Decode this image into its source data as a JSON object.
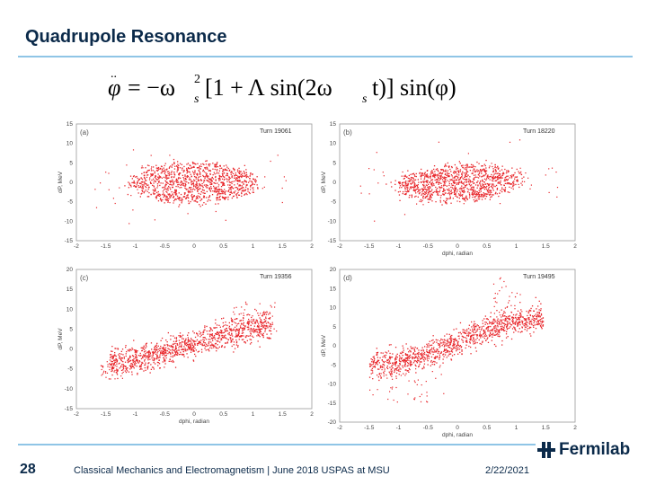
{
  "slide": {
    "title": "Quadrupole Resonance",
    "page_number": "28",
    "footer": "Classical Mechanics and Electromagnetism | June 2018 USPAS at MSU",
    "date": "2/22/2021",
    "logo_text": "Fermilab"
  },
  "equation": {
    "lhs": "φ",
    "rhs_1": "= −ω",
    "sub_s": "s",
    "sup_2": "2",
    "rhs_2": "[1 + Λ sin(2ω",
    "sub_s2": "s",
    "rhs_3": "t)] sin(φ)"
  },
  "colors": {
    "title": "#0b2a4a",
    "rule": "#8fc5e6",
    "points": "#e8262b",
    "logo": "#0b2a4a"
  },
  "chart_data": [
    {
      "type": "scatter",
      "panel": "(a)",
      "annotation": "Turn 19061",
      "xlabel": "",
      "ylabel": "dP, MeV",
      "xlim": [
        -2,
        2
      ],
      "ylim": [
        -15,
        15
      ],
      "xticks": [
        "-2",
        "-1.5",
        "-1",
        "-0.5",
        "0",
        "0.5",
        "1",
        "1.5",
        "2"
      ],
      "yticks": [
        "15",
        "10",
        "5",
        "0",
        "-5",
        "-10",
        "-15"
      ],
      "distribution": "filled ellipse centred at (0,0), phase half-width ~1.0 rad, dP half-height ~5 MeV, sparse halo to ±1.6 rad"
    },
    {
      "type": "scatter",
      "panel": "(b)",
      "annotation": "Turn 18220",
      "xlabel": "dphi, radian",
      "ylabel": "dP, MeV",
      "xlim": [
        -2,
        2
      ],
      "ylim": [
        -15,
        15
      ],
      "xticks": [
        "-2",
        "-1.5",
        "-1",
        "-0.5",
        "0",
        "0.5",
        "1",
        "1.5",
        "2"
      ],
      "yticks": [
        "15",
        "10",
        "5",
        "0",
        "-5",
        "-10",
        "-15"
      ],
      "distribution": "filled ellipse slightly tilted, phase half-width ~1.0 rad, dP half-height ~4.5 MeV"
    },
    {
      "type": "scatter",
      "panel": "(c)",
      "annotation": "Turn 19356",
      "xlabel": "dphi, radian",
      "ylabel": "dP, MeV",
      "xlim": [
        -2,
        2
      ],
      "ylim": [
        -15,
        20
      ],
      "xticks": [
        "-2",
        "-1.5",
        "-1",
        "-0.5",
        "0",
        "0.5",
        "1",
        "1.5",
        "2"
      ],
      "yticks": [
        "20",
        "15",
        "10",
        "5",
        "0",
        "-5",
        "-10",
        "-15"
      ],
      "distribution": "S-shaped band: dP ≈ -3 at -1.4 rad rising to +6 at +1.2 rad, width ~4 MeV"
    },
    {
      "type": "scatter",
      "panel": "(d)",
      "annotation": "Turn 19495",
      "xlabel": "dphi, radian",
      "ylabel": "dP, MeV",
      "xlim": [
        -2,
        2
      ],
      "ylim": [
        -20,
        20
      ],
      "xticks": [
        "-2",
        "-1.5",
        "-1",
        "-0.5",
        "0",
        "0.5",
        "1",
        "1.5",
        "2"
      ],
      "yticks": [
        "20",
        "15",
        "10",
        "5",
        "0",
        "-5",
        "-10",
        "-15",
        "-20"
      ],
      "distribution": "strongly S-shaped band with arms reaching dP ≈ -15 near -0.3 rad and +18 near +0.7 rad"
    }
  ]
}
